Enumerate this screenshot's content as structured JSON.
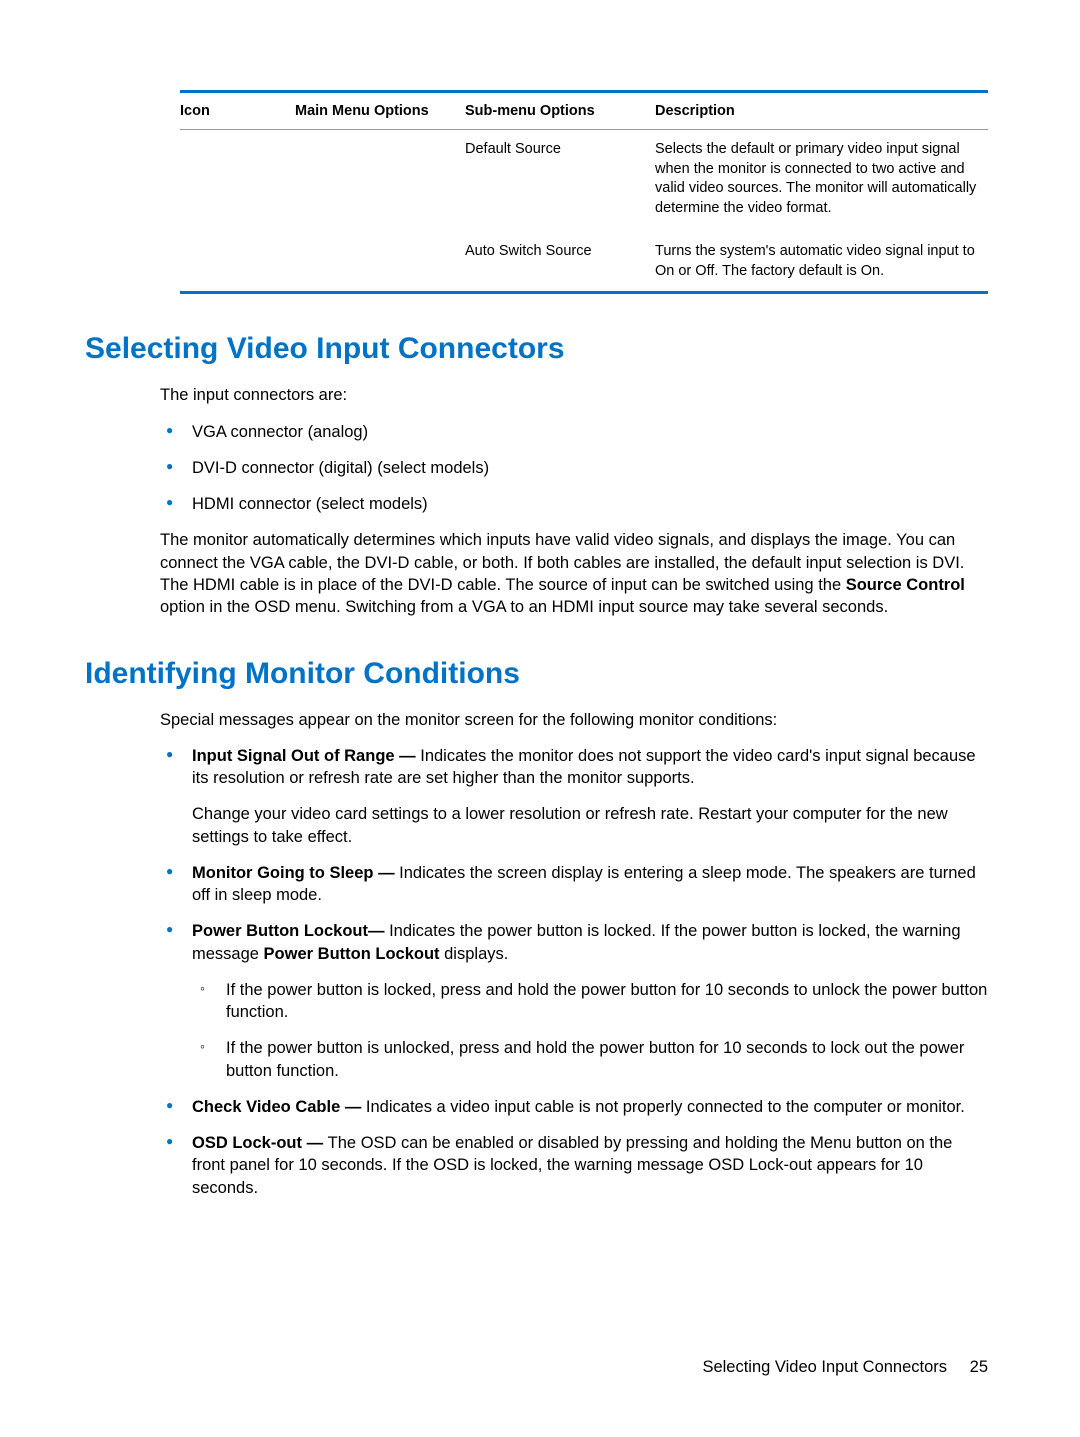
{
  "colors": {
    "accent": "#0073c6",
    "text": "#000000",
    "background": "#ffffff",
    "rule_light": "#999999"
  },
  "table": {
    "headers": [
      "Icon",
      "Main Menu Options",
      "Sub-menu Options",
      "Description"
    ],
    "rows": [
      {
        "icon": "",
        "main": "",
        "sub": "Default Source",
        "desc": "Selects the default or primary video input signal when the monitor is connected to two active and valid video sources. The monitor will automatically determine the video format."
      },
      {
        "icon": "",
        "main": "",
        "sub": "Auto Switch Source",
        "desc": "Turns the system's automatic video signal input to On or Off. The factory default is On."
      }
    ]
  },
  "section1": {
    "title": "Selecting Video Input Connectors",
    "intro": "The input connectors are:",
    "connectors": [
      "VGA connector (analog)",
      "DVI-D connector (digital) (select models)",
      "HDMI connector (select models)"
    ],
    "para_pre": "The monitor automatically determines which inputs have valid video signals, and displays the image. You can connect the VGA cable, the DVI-D cable, or both. If both cables are installed, the default input selection is DVI. The HDMI cable is in place of the DVI-D cable. The source of input can be switched using the ",
    "para_bold": "Source Control",
    "para_post": " option in the OSD menu. Switching from a VGA to an HDMI input source may take several seconds."
  },
  "section2": {
    "title": "Identifying Monitor Conditions",
    "intro": "Special messages appear on the monitor screen for the following monitor conditions:",
    "items": [
      {
        "bold": "Input Signal Out of Range — ",
        "text": "Indicates the monitor does not support the video card's input signal because its resolution or refresh rate are set higher than the monitor supports.",
        "extra": "Change your video card settings to a lower resolution or refresh rate. Restart your computer for the new settings to take effect."
      },
      {
        "bold": "Monitor Going to Sleep — ",
        "text": "Indicates the screen display is entering a sleep mode. The speakers are turned off in sleep mode."
      },
      {
        "bold": "Power Button Lockout— ",
        "text": "Indicates the power button is locked. If the power button is locked, the warning message ",
        "bold2": "Power Button Lockout",
        "text2": " displays.",
        "sub": [
          "If the power button is locked, press and hold the power button for 10 seconds to unlock the power button function.",
          "If the power button is unlocked, press and hold the power button for 10 seconds to lock out the power button function."
        ]
      },
      {
        "bold": "Check Video Cable — ",
        "text": "Indicates a video input cable is not properly connected to the computer or monitor."
      },
      {
        "bold": "OSD Lock-out — ",
        "text": "The OSD can be enabled or disabled by pressing and holding the Menu button on the front panel for 10 seconds. If the OSD is locked, the warning message OSD Lock-out appears for 10 seconds."
      }
    ]
  },
  "footer": {
    "label": "Selecting Video Input Connectors",
    "page": "25"
  }
}
